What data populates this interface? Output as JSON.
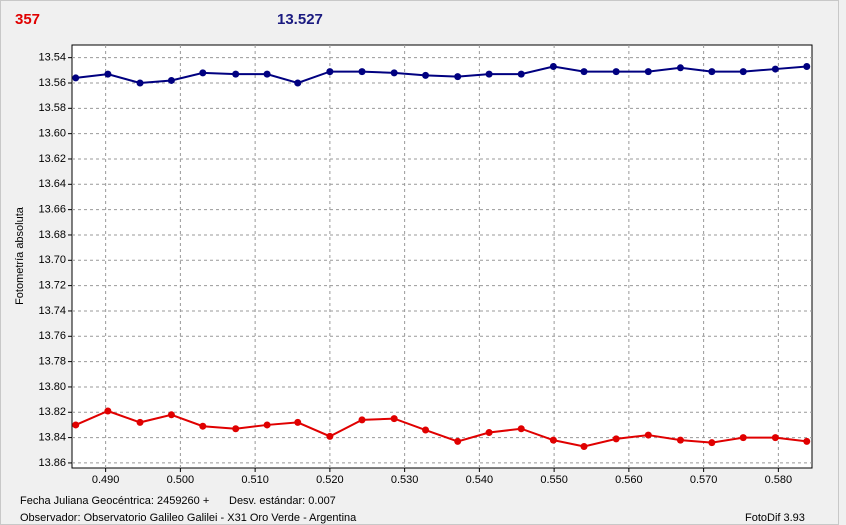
{
  "header": {
    "count": "357",
    "magnitude": "13.527"
  },
  "chart_data": {
    "type": "line",
    "ylabel": "Fotometría absoluta",
    "y_inverted": true,
    "grid": true,
    "xlim": [
      0.4855,
      0.5845
    ],
    "ylim": [
      13.53,
      13.864
    ],
    "xticks": [
      {
        "value": 0.49,
        "label": "0.490"
      },
      {
        "value": 0.5,
        "label": "0.500"
      },
      {
        "value": 0.51,
        "label": "0.510"
      },
      {
        "value": 0.52,
        "label": "0.520"
      },
      {
        "value": 0.53,
        "label": "0.530"
      },
      {
        "value": 0.54,
        "label": "0.540"
      },
      {
        "value": 0.55,
        "label": "0.550"
      },
      {
        "value": 0.56,
        "label": "0.560"
      },
      {
        "value": 0.57,
        "label": "0.570"
      },
      {
        "value": 0.58,
        "label": "0.580"
      }
    ],
    "yticks": [
      13.54,
      13.56,
      13.58,
      {
        "value": 13.6,
        "label": "13.60"
      },
      13.62,
      13.64,
      13.66,
      13.68,
      {
        "value": 13.7,
        "label": "13.70"
      },
      13.72,
      13.74,
      13.76,
      13.78,
      {
        "value": 13.8,
        "label": "13.80"
      },
      13.82,
      13.84,
      13.86
    ],
    "x": [
      0.486,
      0.4903,
      0.4946,
      0.4988,
      0.503,
      0.5074,
      0.5116,
      0.5157,
      0.52,
      0.5243,
      0.5286,
      0.5328,
      0.5371,
      0.5413,
      0.5456,
      0.5499,
      0.554,
      0.5583,
      0.5626,
      0.5669,
      0.5711,
      0.5753,
      0.5796,
      0.5838
    ],
    "series": [
      {
        "color": "#000080",
        "values": [
          13.556,
          13.553,
          13.56,
          13.558,
          13.552,
          13.553,
          13.553,
          13.56,
          13.551,
          13.551,
          13.552,
          13.554,
          13.555,
          13.553,
          13.553,
          13.547,
          13.551,
          13.551,
          13.551,
          13.548,
          13.551,
          13.551,
          13.549,
          13.547
        ]
      },
      {
        "color": "#e00000",
        "values": [
          13.83,
          13.819,
          13.828,
          13.822,
          13.831,
          13.833,
          13.83,
          13.828,
          13.839,
          13.826,
          13.825,
          13.834,
          13.843,
          13.836,
          13.833,
          13.842,
          13.847,
          13.841,
          13.838,
          13.842,
          13.844,
          13.84,
          13.84,
          13.843
        ]
      }
    ]
  },
  "footer": {
    "date": "Fecha Juliana Geocéntrica: 2459260 +",
    "stddev": "Desv. estándar: 0.007",
    "observer": "Observador: Observatorio Galileo Galilei - X31 Oro Verde - Argentina",
    "version": "FotoDif 3.93"
  }
}
